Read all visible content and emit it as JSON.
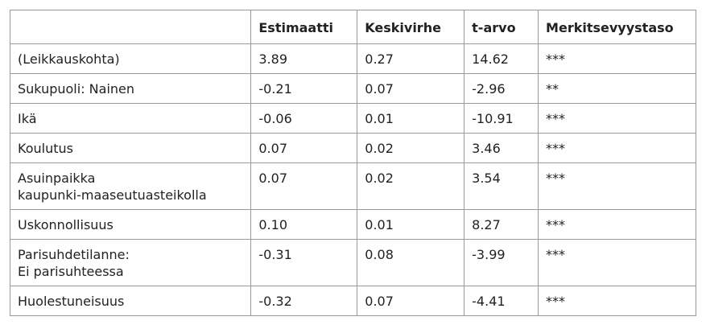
{
  "table": {
    "header": [
      "Estimaatti",
      "Keskivirhe",
      "t-arvo",
      "Merkitsevyystaso"
    ],
    "rows": [
      [
        "(Leikkauskohta)",
        "3.89",
        "0.27",
        "14.62",
        "***"
      ],
      [
        "Sukupuoli: Nainen",
        "-0.21",
        "0.07",
        "-2.96",
        "**"
      ],
      [
        "Ikä",
        "-0.06",
        "0.01",
        "-10.91",
        "***"
      ],
      [
        "Koulutus",
        "0.07",
        "0.02",
        "3.46",
        "***"
      ],
      [
        "Asuinpaikka\nkaupunki-maaseutuasteikolla",
        "0.07",
        "0.02",
        "3.54",
        "***"
      ],
      [
        "Uskonnollisuus",
        "0.10",
        "0.01",
        "8.27",
        "***"
      ],
      [
        "Parisuhdetilanne:\nEi parisuhteessa",
        "-0.31",
        "0.08",
        "-3.99",
        "***"
      ],
      [
        "Huolestuneisuus",
        "-0.32",
        "0.07",
        "-4.41",
        "***"
      ]
    ]
  }
}
